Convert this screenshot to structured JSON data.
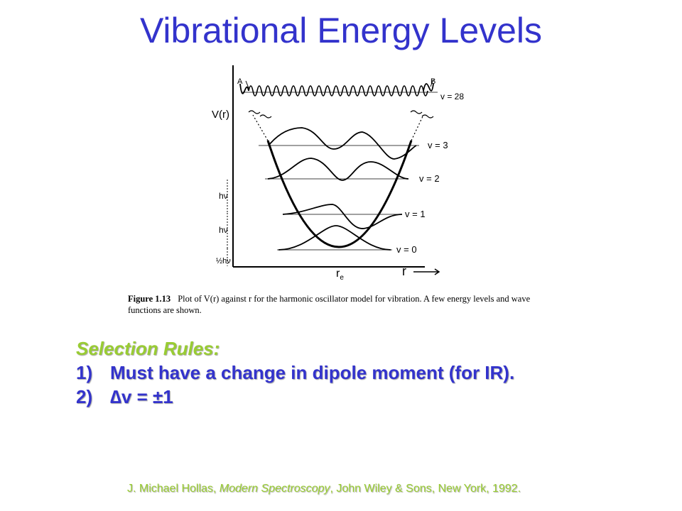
{
  "title": "Vibrational Energy Levels",
  "figure": {
    "y_axis_label": "V(r)",
    "x_axis_label": "r",
    "re_label": "r",
    "re_subscript": "e",
    "point_a": "A",
    "point_b": "B",
    "levels": [
      {
        "label": "v = 0"
      },
      {
        "label": "v = 1"
      },
      {
        "label": "v = 2"
      },
      {
        "label": "v = 3"
      },
      {
        "label": "v = 28"
      }
    ],
    "energy_spacing": [
      "hν",
      "hν",
      "½hν"
    ],
    "caption_label": "Figure 1.13",
    "caption_text": "Plot of V(r) against r for the harmonic oscillator model for vibration. A few energy levels and wave functions are shown."
  },
  "selection_rules": {
    "heading": "Selection Rules:",
    "items": [
      {
        "num": "1)",
        "text": "Must have a change in dipole moment (for IR)."
      },
      {
        "num": "2)",
        "text": "∆v = ±1"
      }
    ]
  },
  "reference": {
    "prefix": "J. Michael Hollas, ",
    "book": "Modern Spectroscopy",
    "suffix": ", John Wiley & Sons, New York, 1992."
  }
}
